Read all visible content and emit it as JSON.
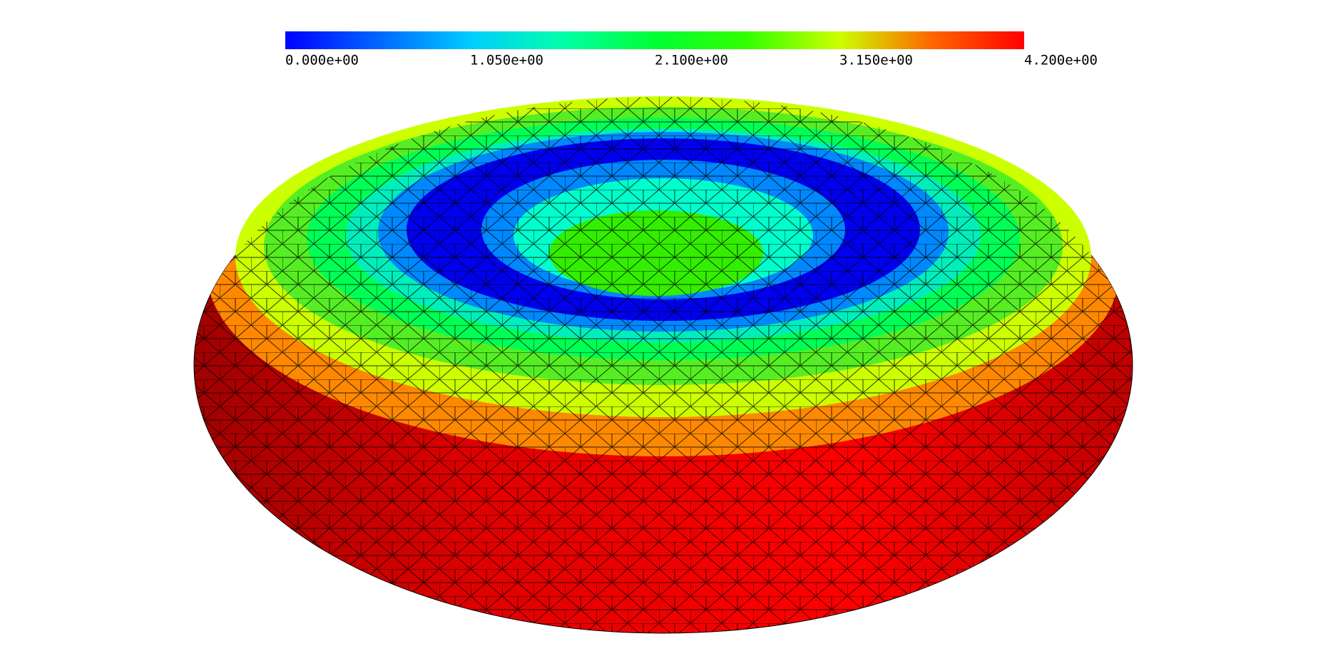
{
  "colorbar": {
    "range": [
      0,
      4.2
    ],
    "colors": [
      "#0000ff",
      "#0066ff",
      "#00ccff",
      "#00ffaa",
      "#00ff33",
      "#33ff00",
      "#ccff00",
      "#ff6600",
      "#ff0000"
    ],
    "ticks": [
      {
        "value": 0,
        "label": "0.000e+00"
      },
      {
        "value": 1.05,
        "label": "1.050e+00"
      },
      {
        "value": 2.1,
        "label": "2.100e+00"
      },
      {
        "value": 3.15,
        "label": "3.150e+00"
      },
      {
        "value": 4.2,
        "label": "4.200e+00"
      }
    ]
  }
}
